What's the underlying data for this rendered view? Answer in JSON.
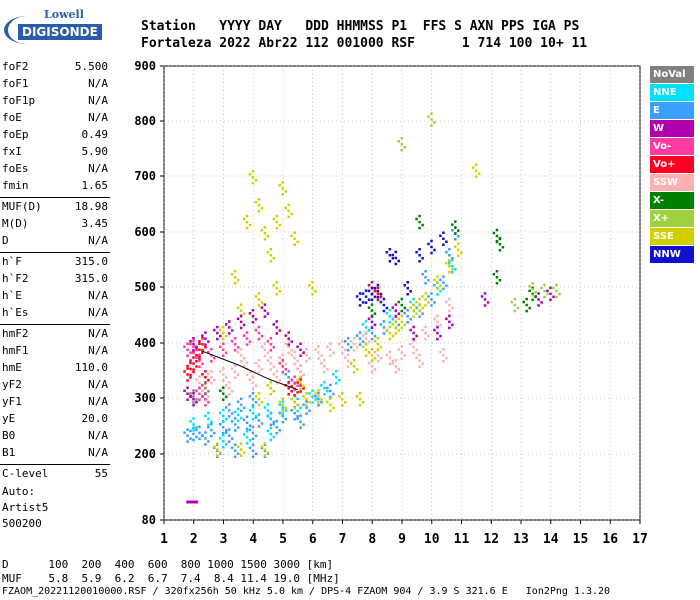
{
  "logo": {
    "line1": "Lowell",
    "line2": "DIGISONDE"
  },
  "header": {
    "line1": "Station   YYYY DAY   DDD HHMMSS P1  FFS S AXN PPS IGA PS",
    "line2": "Fortaleza 2022 Abr22 112 001000 RSF      1 714 100 10+ 11"
  },
  "params": {
    "g1": [
      [
        "foF2",
        "5.500"
      ],
      [
        "foF1",
        "N/A"
      ],
      [
        "foF1p",
        "N/A"
      ],
      [
        "foE",
        "N/A"
      ],
      [
        "foEp",
        "0.49"
      ],
      [
        "fxI",
        "5.90"
      ],
      [
        "foEs",
        "N/A"
      ],
      [
        "fmin",
        "1.65"
      ]
    ],
    "g2": [
      [
        "MUF(D)",
        "18.98"
      ],
      [
        "M(D)",
        "3.45"
      ],
      [
        "D",
        "N/A"
      ]
    ],
    "g3": [
      [
        "h`F",
        "315.0"
      ],
      [
        "h`F2",
        "315.0"
      ],
      [
        "h`E",
        "N/A"
      ],
      [
        "h`Es",
        "N/A"
      ]
    ],
    "g4": [
      [
        "hmF2",
        "N/A"
      ],
      [
        "hmF1",
        "N/A"
      ],
      [
        "hmE",
        "110.0"
      ],
      [
        "yF2",
        "N/A"
      ],
      [
        "yF1",
        "N/A"
      ],
      [
        "yE",
        "20.0"
      ],
      [
        "B0",
        "N/A"
      ],
      [
        "B1",
        "N/A"
      ]
    ],
    "g5": [
      [
        "C-level",
        "55"
      ]
    ]
  },
  "auto": {
    "l1": "Auto:",
    "l2": "Artist5",
    "l3": "500200"
  },
  "legend": [
    {
      "label": "NoVal",
      "color": "#808080"
    },
    {
      "label": "NNE",
      "color": "#00e0ff"
    },
    {
      "label": "E",
      "color": "#3aa0ff"
    },
    {
      "label": "W",
      "color": "#b000b0"
    },
    {
      "label": "Vo-",
      "color": "#ff3aa0"
    },
    {
      "label": "Vo+",
      "color": "#ff0020"
    },
    {
      "label": "SSW",
      "color": "#ffb0b0"
    },
    {
      "label": "X-",
      "color": "#008000"
    },
    {
      "label": "X+",
      "color": "#a0d040"
    },
    {
      "label": "SSE",
      "color": "#d0d000"
    },
    {
      "label": "NNW",
      "color": "#1010d0"
    }
  ],
  "footer": {
    "d_line": "D      100  200  400  600  800 1000 1500 3000 [km]",
    "muf_line": "MUF    5.8  5.9  6.2  6.7  7.4  8.4 11.4 19.0 [MHz]",
    "file_line": "FZAOM_20221120010000.RSF / 320fx256h 50 kHz 5.0 km / DPS-4 FZAOM 904 / 3.9 S 321.6 E   Ion2Png 1.3.20"
  },
  "chart_data": {
    "type": "scatter",
    "xlim": [
      1,
      17
    ],
    "ylim": [
      80,
      900
    ],
    "xticks": [
      "1",
      "2",
      "3",
      "4",
      "5",
      "6",
      "7",
      "8",
      "9",
      "10",
      "11",
      "12",
      "13",
      "14",
      "15",
      "16",
      "17"
    ],
    "yticks": [
      "80",
      "200",
      "300",
      "400",
      "500",
      "600",
      "700",
      "800",
      "900"
    ],
    "ytick_values": [
      80,
      200,
      300,
      400,
      500,
      600,
      700,
      800,
      900
    ],
    "grid": true,
    "trace_line": [
      [
        2.3,
        385
      ],
      [
        3.5,
        360
      ],
      [
        4.5,
        335
      ],
      [
        5.5,
        315
      ]
    ],
    "series": [
      {
        "color": "#3aa0ff",
        "points": [
          [
            2.2,
            240
          ],
          [
            2.6,
            245
          ],
          [
            3.0,
            250
          ],
          [
            3.4,
            255
          ],
          [
            3.8,
            258
          ],
          [
            4.2,
            262
          ],
          [
            4.6,
            265
          ],
          [
            5.0,
            270
          ],
          [
            5.4,
            275
          ],
          [
            5.8,
            285
          ],
          [
            6.2,
            300
          ],
          [
            6.6,
            315
          ],
          [
            2.4,
            230
          ],
          [
            3.2,
            235
          ],
          [
            4.0,
            240
          ],
          [
            4.8,
            250
          ],
          [
            5.6,
            260
          ],
          [
            2.8,
            208
          ],
          [
            3.4,
            208
          ],
          [
            4.0,
            208
          ],
          [
            4.4,
            208
          ],
          [
            1.8,
            235
          ],
          [
            2.0,
            238
          ],
          [
            7.2,
            400
          ],
          [
            7.6,
            410
          ],
          [
            8.0,
            420
          ],
          [
            8.4,
            430
          ],
          [
            8.8,
            440
          ],
          [
            9.2,
            450
          ],
          [
            9.6,
            460
          ],
          [
            10.0,
            480
          ],
          [
            10.4,
            510
          ],
          [
            10.6,
            560
          ],
          [
            10.8,
            600
          ],
          [
            9.8,
            520
          ],
          [
            3.2,
            280
          ],
          [
            3.6,
            290
          ],
          [
            4.0,
            300
          ],
          [
            4.6,
            320
          ],
          [
            5.2,
            340
          ],
          [
            5.6,
            350
          ]
        ]
      },
      {
        "color": "#00e0ff",
        "points": [
          [
            2.0,
            255
          ],
          [
            2.5,
            265
          ],
          [
            3.0,
            270
          ],
          [
            3.5,
            272
          ],
          [
            4.0,
            275
          ],
          [
            4.5,
            280
          ],
          [
            5.0,
            285
          ],
          [
            5.5,
            290
          ],
          [
            6.0,
            305
          ],
          [
            6.4,
            320
          ],
          [
            6.8,
            340
          ],
          [
            3.0,
            225
          ],
          [
            3.8,
            232
          ],
          [
            4.6,
            238
          ],
          [
            7.8,
            430
          ],
          [
            8.6,
            450
          ],
          [
            9.4,
            470
          ],
          [
            10.2,
            500
          ],
          [
            10.7,
            540
          ]
        ]
      },
      {
        "color": "#ffb0b0",
        "points": [
          [
            2.2,
            330
          ],
          [
            2.6,
            340
          ],
          [
            3.0,
            345
          ],
          [
            3.4,
            350
          ],
          [
            3.8,
            355
          ],
          [
            4.2,
            360
          ],
          [
            4.6,
            365
          ],
          [
            5.0,
            370
          ],
          [
            5.4,
            375
          ],
          [
            5.8,
            380
          ],
          [
            6.2,
            385
          ],
          [
            6.6,
            390
          ],
          [
            7.0,
            395
          ],
          [
            7.4,
            400
          ],
          [
            7.8,
            410
          ],
          [
            8.2,
            380
          ],
          [
            8.6,
            375
          ],
          [
            9.0,
            385
          ],
          [
            9.4,
            395
          ],
          [
            9.8,
            420
          ],
          [
            10.2,
            440
          ],
          [
            10.6,
            470
          ],
          [
            2.4,
            310
          ],
          [
            3.2,
            320
          ],
          [
            4.0,
            330
          ],
          [
            4.8,
            340
          ],
          [
            5.6,
            350
          ],
          [
            6.4,
            360
          ],
          [
            7.2,
            370
          ],
          [
            8.0,
            360
          ],
          [
            8.8,
            360
          ],
          [
            9.6,
            370
          ],
          [
            10.4,
            380
          ],
          [
            3.6,
            380
          ],
          [
            4.4,
            390
          ],
          [
            5.2,
            395
          ]
        ]
      },
      {
        "color": "#d0d000",
        "points": [
          [
            3.0,
            420
          ],
          [
            3.4,
            520
          ],
          [
            3.8,
            620
          ],
          [
            4.0,
            700
          ],
          [
            4.2,
            650
          ],
          [
            4.4,
            600
          ],
          [
            4.6,
            560
          ],
          [
            4.8,
            620
          ],
          [
            5.0,
            680
          ],
          [
            5.2,
            640
          ],
          [
            5.4,
            590
          ],
          [
            3.6,
            460
          ],
          [
            4.2,
            480
          ],
          [
            4.8,
            500
          ],
          [
            5.0,
            290
          ],
          [
            5.4,
            295
          ],
          [
            5.8,
            300
          ],
          [
            6.2,
            305
          ],
          [
            6.6,
            290
          ],
          [
            7.0,
            300
          ],
          [
            7.4,
            360
          ],
          [
            7.8,
            390
          ],
          [
            8.2,
            400
          ],
          [
            8.6,
            420
          ],
          [
            9.0,
            440
          ],
          [
            9.4,
            460
          ],
          [
            9.8,
            480
          ],
          [
            10.2,
            510
          ],
          [
            10.6,
            540
          ],
          [
            10.9,
            570
          ],
          [
            7.6,
            300
          ],
          [
            8.0,
            380
          ],
          [
            8.8,
            430
          ],
          [
            9.6,
            470
          ],
          [
            4.2,
            300
          ],
          [
            4.6,
            320
          ],
          [
            5.6,
            330
          ],
          [
            2.8,
            210
          ],
          [
            3.6,
            210
          ],
          [
            4.4,
            210
          ],
          [
            6.0,
            500
          ],
          [
            11.5,
            712
          ]
        ]
      },
      {
        "color": "#ff0020",
        "points": [
          [
            1.8,
            345
          ],
          [
            1.9,
            355
          ],
          [
            2.0,
            365
          ],
          [
            2.1,
            380
          ],
          [
            2.2,
            390
          ],
          [
            2.3,
            400
          ],
          [
            2.4,
            340
          ],
          [
            5.2,
            320
          ],
          [
            5.4,
            318
          ],
          [
            5.6,
            325
          ],
          [
            8.0,
            500
          ],
          [
            8.2,
            490
          ]
        ]
      },
      {
        "color": "#ff3aa0",
        "points": [
          [
            1.8,
            390
          ],
          [
            2.0,
            395
          ],
          [
            2.2,
            370
          ],
          [
            2.6,
            380
          ],
          [
            3.0,
            390
          ],
          [
            3.4,
            400
          ],
          [
            3.8,
            410
          ],
          [
            4.2,
            420
          ],
          [
            4.6,
            400
          ],
          [
            5.0,
            360
          ],
          [
            5.4,
            330
          ],
          [
            2.4,
            300
          ],
          [
            2.2,
            310
          ]
        ]
      },
      {
        "color": "#b000b0",
        "points": [
          [
            2.0,
            400
          ],
          [
            2.4,
            410
          ],
          [
            2.8,
            420
          ],
          [
            3.2,
            430
          ],
          [
            3.6,
            440
          ],
          [
            4.0,
            450
          ],
          [
            4.4,
            460
          ],
          [
            4.8,
            430
          ],
          [
            5.2,
            410
          ],
          [
            5.6,
            390
          ],
          [
            1.8,
            310
          ],
          [
            2.0,
            300
          ],
          [
            8.0,
            440
          ],
          [
            8.8,
            460
          ],
          [
            9.4,
            420
          ],
          [
            10.2,
            420
          ],
          [
            10.6,
            440
          ],
          [
            11.8,
            480
          ],
          [
            14.0,
            490
          ],
          [
            13.6,
            480
          ]
        ]
      },
      {
        "color": "#1010d0",
        "points": [
          [
            7.8,
            485
          ],
          [
            8.0,
            490
          ],
          [
            8.2,
            495
          ],
          [
            8.6,
            560
          ],
          [
            8.8,
            555
          ],
          [
            9.6,
            560
          ],
          [
            10.0,
            575
          ],
          [
            10.4,
            590
          ],
          [
            7.6,
            480
          ],
          [
            8.4,
            470
          ],
          [
            9.2,
            500
          ]
        ]
      },
      {
        "color": "#008000",
        "points": [
          [
            12.2,
            595
          ],
          [
            12.3,
            580
          ],
          [
            12.2,
            520
          ],
          [
            13.2,
            470
          ],
          [
            13.4,
            490
          ],
          [
            10.8,
            610
          ],
          [
            9.6,
            620
          ],
          [
            8.0,
            460
          ],
          [
            9.0,
            470
          ],
          [
            3.0,
            310
          ]
        ]
      },
      {
        "color": "#a0d040",
        "points": [
          [
            13.4,
            498
          ],
          [
            13.8,
            495
          ],
          [
            14.2,
            495
          ],
          [
            12.8,
            470
          ],
          [
            10.0,
            805
          ],
          [
            9.0,
            760
          ]
        ]
      },
      {
        "color": "#808080",
        "points": [
          [
            2.0,
            305
          ],
          [
            2.4,
            320
          ]
        ]
      }
    ]
  }
}
